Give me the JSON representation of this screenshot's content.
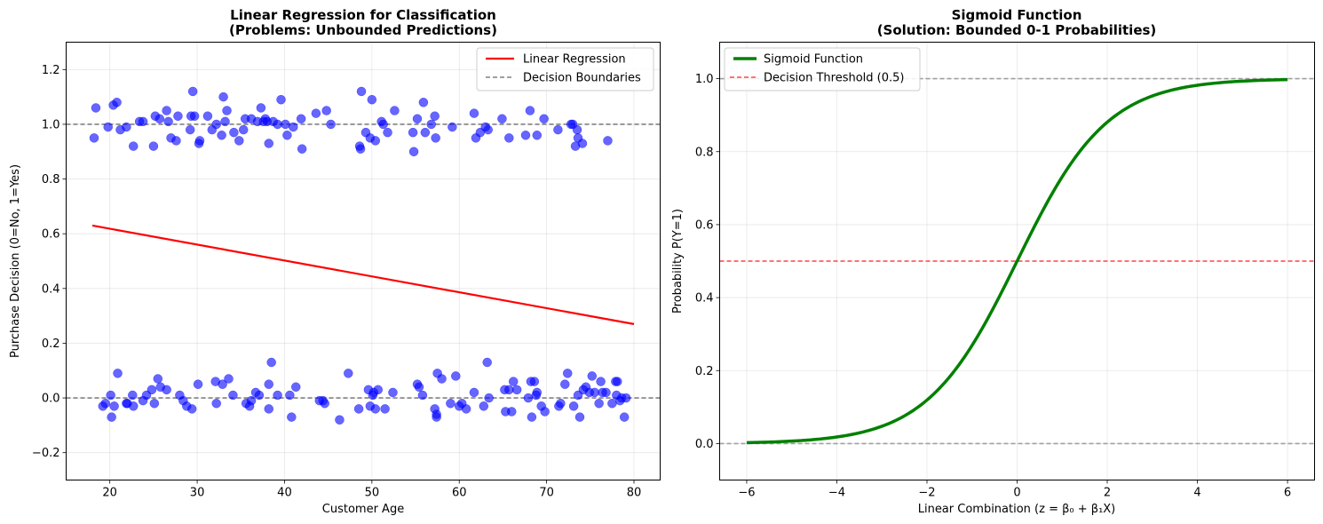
{
  "chart_data": [
    {
      "type": "scatter",
      "title_line1": "Linear Regression for Classification",
      "title_line2": "(Problems: Unbounded Predictions)",
      "xlabel": "Customer Age",
      "ylabel": "Purchase Decision (0=No, 1=Yes)",
      "xlim": [
        15,
        83
      ],
      "ylim": [
        -0.3,
        1.3
      ],
      "xticks": [
        20,
        30,
        40,
        50,
        60,
        70,
        80
      ],
      "yticks": [
        -0.2,
        0.0,
        0.2,
        0.4,
        0.6,
        0.8,
        1.0,
        1.2
      ],
      "xtick_labels": [
        "20",
        "30",
        "40",
        "50",
        "60",
        "70",
        "80"
      ],
      "ytick_labels": [
        "−0.2",
        "0.0",
        "0.2",
        "0.4",
        "0.6",
        "0.8",
        "1.0",
        "1.2"
      ],
      "grid": true,
      "legend_position": "upper right",
      "legend": [
        "Linear Regression",
        "Decision Boundaries"
      ],
      "colors": {
        "points": "#0000ff",
        "line": "#ff0000",
        "boundary": "#808080"
      },
      "regression_line": {
        "x": [
          18,
          80
        ],
        "y": [
          0.63,
          0.27
        ]
      },
      "decision_boundaries": [
        0,
        1
      ],
      "points_class1": [
        [
          18.2,
          0.95
        ],
        [
          18.4,
          1.06
        ],
        [
          19.8,
          0.99
        ],
        [
          20.4,
          1.07
        ],
        [
          20.8,
          1.08
        ],
        [
          21.2,
          0.98
        ],
        [
          21.9,
          0.99
        ],
        [
          22.7,
          0.92
        ],
        [
          23.4,
          1.01
        ],
        [
          23.8,
          1.01
        ],
        [
          25.0,
          0.92
        ],
        [
          25.2,
          1.03
        ],
        [
          25.7,
          1.02
        ],
        [
          26.5,
          1.05
        ],
        [
          26.7,
          1.01
        ],
        [
          27.0,
          0.95
        ],
        [
          27.6,
          0.94
        ],
        [
          27.8,
          1.03
        ],
        [
          29.2,
          0.98
        ],
        [
          29.3,
          1.03
        ],
        [
          29.5,
          1.12
        ],
        [
          29.7,
          1.03
        ],
        [
          30.2,
          0.93
        ],
        [
          30.3,
          0.94
        ],
        [
          31.2,
          1.03
        ],
        [
          31.7,
          0.98
        ],
        [
          32.2,
          1.0
        ],
        [
          32.8,
          0.96
        ],
        [
          33.0,
          1.1
        ],
        [
          33.2,
          1.01
        ],
        [
          33.4,
          1.05
        ],
        [
          34.2,
          0.97
        ],
        [
          34.8,
          0.94
        ],
        [
          35.3,
          0.98
        ],
        [
          35.5,
          1.02
        ],
        [
          36.2,
          1.02
        ],
        [
          36.9,
          1.01
        ],
        [
          37.3,
          1.06
        ],
        [
          37.6,
          1.01
        ],
        [
          37.8,
          1.02
        ],
        [
          38.0,
          1.01
        ],
        [
          38.2,
          0.93
        ],
        [
          38.7,
          1.01
        ],
        [
          39.2,
          1.0
        ],
        [
          39.6,
          1.09
        ],
        [
          40.1,
          1.0
        ],
        [
          40.3,
          0.96
        ],
        [
          41.0,
          0.99
        ],
        [
          41.9,
          1.02
        ],
        [
          42.0,
          0.91
        ],
        [
          43.6,
          1.04
        ],
        [
          44.8,
          1.05
        ],
        [
          45.3,
          1.0
        ],
        [
          48.6,
          0.92
        ],
        [
          48.7,
          0.91
        ],
        [
          48.8,
          1.12
        ],
        [
          49.3,
          0.97
        ],
        [
          49.8,
          0.95
        ],
        [
          50.0,
          1.09
        ],
        [
          50.4,
          0.94
        ],
        [
          51.1,
          1.01
        ],
        [
          51.3,
          1.0
        ],
        [
          51.8,
          0.97
        ],
        [
          52.6,
          1.05
        ],
        [
          54.7,
          0.97
        ],
        [
          54.8,
          0.9
        ],
        [
          55.2,
          1.02
        ],
        [
          55.9,
          1.08
        ],
        [
          56.1,
          0.97
        ],
        [
          56.8,
          1.0
        ],
        [
          57.2,
          1.03
        ],
        [
          57.3,
          0.95
        ],
        [
          59.2,
          0.99
        ],
        [
          61.7,
          1.04
        ],
        [
          61.9,
          0.95
        ],
        [
          62.4,
          0.97
        ],
        [
          63.0,
          0.99
        ],
        [
          63.3,
          0.98
        ],
        [
          64.9,
          1.02
        ],
        [
          65.7,
          0.95
        ],
        [
          67.6,
          0.96
        ],
        [
          68.1,
          1.05
        ],
        [
          68.9,
          0.96
        ],
        [
          69.7,
          1.02
        ],
        [
          71.3,
          0.98
        ],
        [
          72.8,
          1.0
        ],
        [
          73.0,
          1.0
        ],
        [
          73.3,
          0.92
        ],
        [
          73.5,
          0.98
        ],
        [
          73.6,
          0.95
        ],
        [
          74.1,
          0.93
        ],
        [
          77.0,
          0.94
        ]
      ],
      "points_class0": [
        [
          19.2,
          -0.03
        ],
        [
          19.5,
          -0.02
        ],
        [
          20.1,
          0.01
        ],
        [
          20.2,
          -0.07
        ],
        [
          20.5,
          -0.03
        ],
        [
          20.9,
          0.09
        ],
        [
          21.9,
          -0.02
        ],
        [
          22.0,
          -0.02
        ],
        [
          22.6,
          0.01
        ],
        [
          22.7,
          -0.03
        ],
        [
          23.8,
          -0.01
        ],
        [
          24.2,
          0.01
        ],
        [
          24.8,
          0.03
        ],
        [
          25.1,
          -0.02
        ],
        [
          25.5,
          0.07
        ],
        [
          25.8,
          0.04
        ],
        [
          26.5,
          0.03
        ],
        [
          28.0,
          0.01
        ],
        [
          28.4,
          -0.01
        ],
        [
          28.8,
          -0.03
        ],
        [
          29.4,
          -0.04
        ],
        [
          30.1,
          0.05
        ],
        [
          32.1,
          0.06
        ],
        [
          32.2,
          -0.02
        ],
        [
          32.9,
          0.05
        ],
        [
          33.6,
          0.07
        ],
        [
          34.1,
          0.01
        ],
        [
          35.6,
          -0.02
        ],
        [
          36.0,
          -0.03
        ],
        [
          36.2,
          -0.01
        ],
        [
          36.7,
          0.02
        ],
        [
          37.1,
          0.01
        ],
        [
          38.2,
          -0.04
        ],
        [
          38.2,
          0.05
        ],
        [
          38.5,
          0.13
        ],
        [
          39.2,
          0.01
        ],
        [
          40.6,
          0.01
        ],
        [
          40.8,
          -0.07
        ],
        [
          41.3,
          0.04
        ],
        [
          44.0,
          -0.01
        ],
        [
          44.4,
          -0.01
        ],
        [
          44.6,
          -0.02
        ],
        [
          46.3,
          -0.08
        ],
        [
          47.3,
          0.09
        ],
        [
          48.5,
          -0.04
        ],
        [
          49.6,
          0.03
        ],
        [
          49.8,
          -0.03
        ],
        [
          50.1,
          0.01
        ],
        [
          50.2,
          0.02
        ],
        [
          50.4,
          -0.04
        ],
        [
          50.7,
          0.03
        ],
        [
          51.5,
          -0.04
        ],
        [
          52.4,
          0.02
        ],
        [
          55.2,
          0.05
        ],
        [
          55.4,
          0.04
        ],
        [
          55.8,
          0.01
        ],
        [
          57.2,
          -0.04
        ],
        [
          57.4,
          -0.06
        ],
        [
          57.4,
          -0.07
        ],
        [
          57.5,
          0.09
        ],
        [
          58.0,
          0.07
        ],
        [
          59.0,
          -0.02
        ],
        [
          59.6,
          0.08
        ],
        [
          60.0,
          -0.03
        ],
        [
          60.3,
          -0.02
        ],
        [
          60.8,
          -0.04
        ],
        [
          61.7,
          0.02
        ],
        [
          62.8,
          -0.03
        ],
        [
          63.2,
          0.13
        ],
        [
          63.4,
          0.0
        ],
        [
          65.2,
          0.03
        ],
        [
          65.3,
          -0.05
        ],
        [
          65.7,
          0.03
        ],
        [
          66.0,
          -0.05
        ],
        [
          66.2,
          0.06
        ],
        [
          66.6,
          0.03
        ],
        [
          67.9,
          0.0
        ],
        [
          68.2,
          0.06
        ],
        [
          68.3,
          -0.07
        ],
        [
          68.6,
          0.06
        ],
        [
          68.8,
          0.01
        ],
        [
          68.9,
          0.02
        ],
        [
          69.4,
          -0.03
        ],
        [
          69.8,
          -0.05
        ],
        [
          71.4,
          -0.03
        ],
        [
          71.6,
          -0.02
        ],
        [
          72.1,
          0.05
        ],
        [
          72.4,
          0.09
        ],
        [
          73.1,
          -0.03
        ],
        [
          73.6,
          0.01
        ],
        [
          73.8,
          -0.07
        ],
        [
          74.2,
          0.03
        ],
        [
          74.5,
          0.04
        ],
        [
          74.9,
          0.02
        ],
        [
          75.2,
          0.08
        ],
        [
          75.5,
          0.02
        ],
        [
          76.0,
          -0.02
        ],
        [
          76.2,
          0.06
        ],
        [
          76.4,
          0.02
        ],
        [
          76.8,
          0.02
        ],
        [
          77.5,
          -0.02
        ],
        [
          77.9,
          0.06
        ],
        [
          78.0,
          0.01
        ],
        [
          78.1,
          0.06
        ],
        [
          78.4,
          -0.01
        ],
        [
          78.6,
          0.0
        ],
        [
          78.9,
          -0.07
        ],
        [
          79.1,
          0.0
        ]
      ]
    },
    {
      "type": "line",
      "title_line1": "Sigmoid Function",
      "title_line2": "(Solution: Bounded 0-1 Probabilities)",
      "xlabel": "Linear Combination (z = β₀ + β₁X)",
      "ylabel": "Probability P(Y=1)",
      "xlim": [
        -6.6,
        6.6
      ],
      "ylim": [
        -0.1,
        1.1
      ],
      "xticks": [
        -6,
        -4,
        -2,
        0,
        2,
        4,
        6
      ],
      "yticks": [
        0.0,
        0.2,
        0.4,
        0.6,
        0.8,
        1.0
      ],
      "xtick_labels": [
        "−6",
        "−4",
        "−2",
        "0",
        "2",
        "4",
        "6"
      ],
      "ytick_labels": [
        "0.0",
        "0.2",
        "0.4",
        "0.6",
        "0.8",
        "1.0"
      ],
      "grid": true,
      "legend_position": "upper left",
      "legend": [
        "Sigmoid Function",
        "Decision Threshold (0.5)"
      ],
      "colors": {
        "curve": "#008000",
        "threshold": "#ff4444",
        "bounds": "#a0a0a0"
      },
      "curve_domain": [
        -6,
        6
      ],
      "curve_function": "sigmoid",
      "threshold": 0.5,
      "bounds": [
        0,
        1
      ]
    }
  ]
}
